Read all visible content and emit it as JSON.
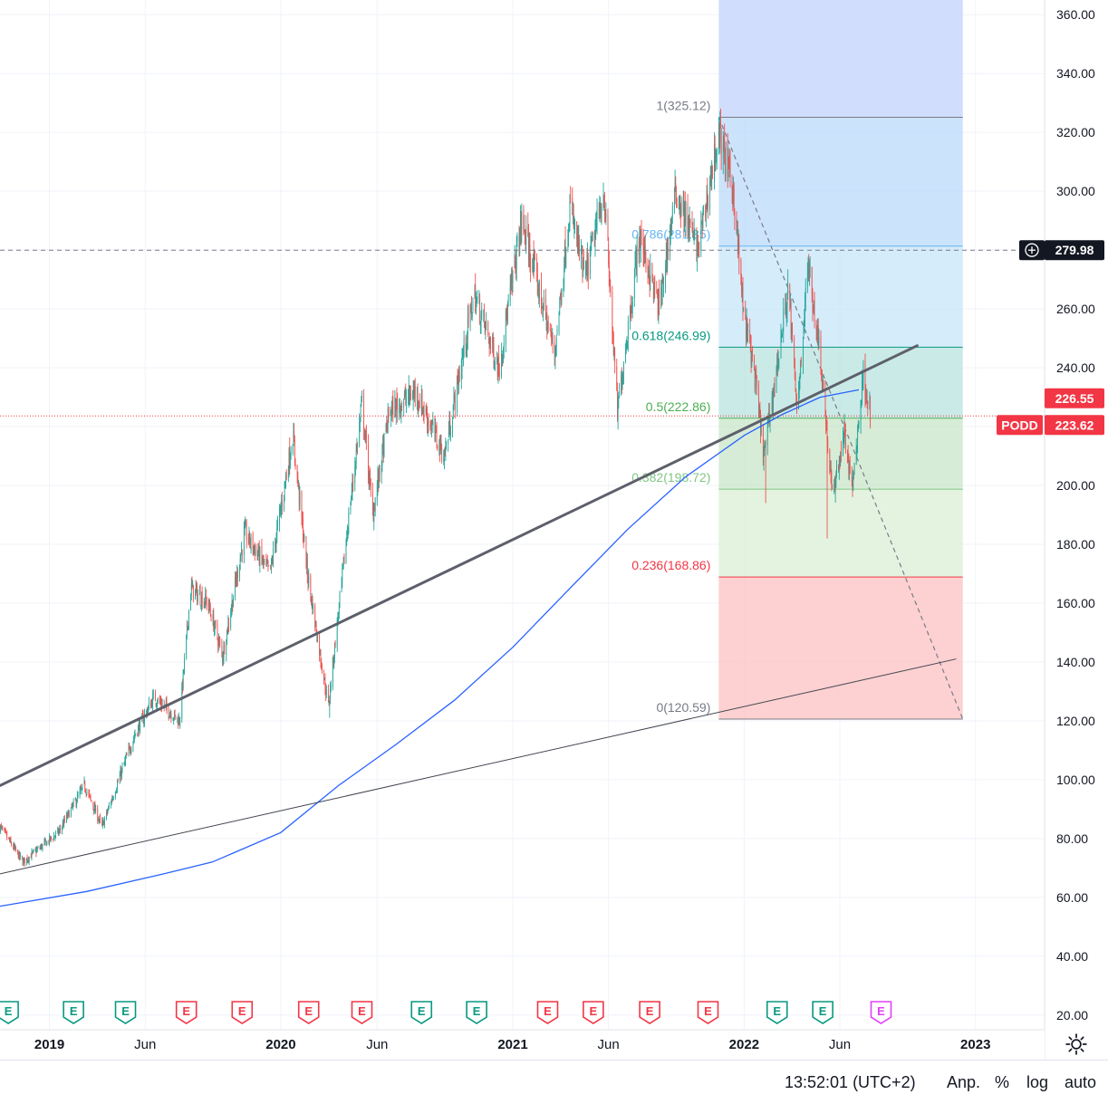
{
  "chart_data": {
    "type": "candlestick",
    "symbol": "PODD",
    "y_axis": {
      "min": 15,
      "max": 365,
      "ticks": [
        "20.00",
        "40.00",
        "60.00",
        "80.00",
        "100.00",
        "120.00",
        "140.00",
        "160.00",
        "180.00",
        "200.00",
        "220.00",
        "240.00",
        "260.00",
        "280.00",
        "300.00",
        "320.00",
        "340.00",
        "360.00"
      ],
      "tick_values": [
        20,
        40,
        60,
        80,
        100,
        120,
        140,
        160,
        180,
        200,
        220,
        240,
        260,
        280,
        300,
        320,
        340,
        360
      ]
    },
    "x_axis": {
      "start": "2018-10-15",
      "end": "2023-04-20",
      "labels": [
        {
          "text": "2019",
          "date": "2019-01-01"
        },
        {
          "text": "Jun",
          "date": "2019-06-01"
        },
        {
          "text": "2020",
          "date": "2020-01-01"
        },
        {
          "text": "Jun",
          "date": "2020-06-01"
        },
        {
          "text": "2021",
          "date": "2021-01-01"
        },
        {
          "text": "Jun",
          "date": "2021-06-01"
        },
        {
          "text": "2022",
          "date": "2022-01-01"
        },
        {
          "text": "Jun",
          "date": "2022-06-01"
        },
        {
          "text": "2023",
          "date": "2023-01-01"
        }
      ]
    },
    "price_path": [
      [
        "2018-10-15",
        84
      ],
      [
        "2018-11-20",
        72
      ],
      [
        "2019-01-15",
        82
      ],
      [
        "2019-02-25",
        98
      ],
      [
        "2019-03-25",
        84
      ],
      [
        "2019-05-15",
        115
      ],
      [
        "2019-06-15",
        128
      ],
      [
        "2019-07-25",
        120
      ],
      [
        "2019-08-12",
        165
      ],
      [
        "2019-09-08",
        160
      ],
      [
        "2019-10-01",
        142
      ],
      [
        "2019-11-05",
        184
      ],
      [
        "2019-12-15",
        170
      ],
      [
        "2020-01-20",
        217
      ],
      [
        "2020-02-12",
        170
      ],
      [
        "2020-03-16",
        125
      ],
      [
        "2020-04-15",
        185
      ],
      [
        "2020-05-08",
        228
      ],
      [
        "2020-05-25",
        190
      ],
      [
        "2020-06-20",
        225
      ],
      [
        "2020-08-01",
        232
      ],
      [
        "2020-09-15",
        210
      ],
      [
        "2020-11-01",
        265
      ],
      [
        "2020-12-10",
        240
      ],
      [
        "2021-01-15",
        290
      ],
      [
        "2021-03-08",
        245
      ],
      [
        "2021-04-01",
        295
      ],
      [
        "2021-04-25",
        270
      ],
      [
        "2021-05-25",
        300
      ],
      [
        "2021-06-15",
        225
      ],
      [
        "2021-07-20",
        285
      ],
      [
        "2021-08-20",
        260
      ],
      [
        "2021-09-15",
        300
      ],
      [
        "2021-10-20",
        280
      ],
      [
        "2021-11-22",
        320
      ],
      [
        "2021-12-15",
        300
      ],
      [
        "2021-12-31",
        258
      ],
      [
        "2022-01-15",
        242
      ],
      [
        "2022-02-01",
        210
      ],
      [
        "2022-02-20",
        238
      ],
      [
        "2022-03-12",
        268
      ],
      [
        "2022-03-25",
        225
      ],
      [
        "2022-04-12",
        275
      ],
      [
        "2022-05-01",
        245
      ],
      [
        "2022-05-20",
        196
      ],
      [
        "2022-06-08",
        218
      ],
      [
        "2022-06-20",
        198
      ],
      [
        "2022-07-08",
        238
      ],
      [
        "2022-07-20",
        223.62
      ]
    ],
    "wicks": [
      {
        "date": "2020-03-18",
        "low": 121
      },
      {
        "date": "2021-06-16",
        "low": 219
      },
      {
        "date": "2021-11-22",
        "high": 325.12
      },
      {
        "date": "2022-02-05",
        "low": 194
      },
      {
        "date": "2022-05-12",
        "low": 182
      }
    ],
    "moving_average": [
      [
        "2018-10-15",
        57
      ],
      [
        "2019-03-01",
        62
      ],
      [
        "2019-07-01",
        68
      ],
      [
        "2019-09-15",
        72
      ],
      [
        "2020-01-01",
        82
      ],
      [
        "2020-04-01",
        98
      ],
      [
        "2020-07-01",
        112
      ],
      [
        "2020-10-01",
        127
      ],
      [
        "2021-01-01",
        145
      ],
      [
        "2021-04-01",
        165
      ],
      [
        "2021-07-01",
        185
      ],
      [
        "2021-10-01",
        203
      ],
      [
        "2022-01-01",
        217
      ],
      [
        "2022-03-01",
        224
      ],
      [
        "2022-05-01",
        230
      ],
      [
        "2022-07-01",
        232.5
      ]
    ],
    "trend_lines": [
      {
        "name": "thick-trendline",
        "from": [
          "2018-10-15",
          98
        ],
        "to": [
          "2022-10-01",
          247.5
        ],
        "color": "#5d606b",
        "width": 3
      },
      {
        "name": "thin-trendline",
        "from": [
          "2018-10-15",
          68
        ],
        "to": [
          "2022-12-01",
          141
        ],
        "color": "#434651",
        "width": 1
      }
    ],
    "horizontal_lines": [
      {
        "name": "crosshair-line",
        "value": 279.98,
        "style": "dashed",
        "color": "#787b86"
      },
      {
        "name": "last-price-line",
        "value": 223.62,
        "style": "dotted",
        "color": "#f23645"
      }
    ],
    "fibonacci": {
      "start_date": "2021-11-22",
      "end_date": "2022-12-12",
      "high": 325.12,
      "low": 120.59,
      "levels": [
        {
          "label": "1(325.12)",
          "value": 325.12,
          "color": "#787b86",
          "zone_color": "#d1d4dc"
        },
        {
          "label": "0.786(281.35)",
          "value": 281.35,
          "color": "#64b5f6",
          "zone_color": "#bbd9fb"
        },
        {
          "label": "0.618(246.99)",
          "value": 246.99,
          "color": "#089981",
          "zone_color": "#c7e5f8"
        },
        {
          "label": "0.5(222.86)",
          "value": 222.86,
          "color": "#4caf50",
          "zone_color": "#b8e3df"
        },
        {
          "label": "0.382(198.72)",
          "value": 198.72,
          "color": "#81c784",
          "zone_color": "#c9e6c9"
        },
        {
          "label": "0.236(168.86)",
          "value": 168.86,
          "color": "#f23645",
          "zone_color": "#d9efd6"
        },
        {
          "label": "0(120.59)",
          "value": 120.59,
          "color": "#787b86",
          "zone_color": "#fcc2c2"
        }
      ],
      "extension_color": "#cfdbfd"
    },
    "price_labels": [
      {
        "name": "crosshair-price-label",
        "text": "279.98",
        "value": 279.98,
        "bg": "#131722",
        "fg": "#ffffff"
      },
      {
        "name": "ma-price-label",
        "text": "226.55",
        "value": 226.55,
        "bg": "#f23645",
        "fg": "#ffffff"
      },
      {
        "name": "last-price-label",
        "text": "223.62",
        "value": 223.62,
        "bg": "#f23645",
        "fg": "#ffffff"
      }
    ],
    "events": [
      {
        "date": "2018-10-28",
        "type": "E",
        "color": "#089981"
      },
      {
        "date": "2019-02-08",
        "type": "E",
        "color": "#089981"
      },
      {
        "date": "2019-05-01",
        "type": "E",
        "color": "#089981"
      },
      {
        "date": "2019-08-05",
        "type": "E",
        "color": "#f23645"
      },
      {
        "date": "2019-11-01",
        "type": "E",
        "color": "#f23645"
      },
      {
        "date": "2020-02-14",
        "type": "E",
        "color": "#f23645"
      },
      {
        "date": "2020-05-08",
        "type": "E",
        "color": "#f23645"
      },
      {
        "date": "2020-08-10",
        "type": "E",
        "color": "#089981"
      },
      {
        "date": "2020-11-05",
        "type": "E",
        "color": "#089981"
      },
      {
        "date": "2021-02-25",
        "type": "E",
        "color": "#f23645"
      },
      {
        "date": "2021-05-08",
        "type": "E",
        "color": "#f23645"
      },
      {
        "date": "2021-08-05",
        "type": "E",
        "color": "#f23645"
      },
      {
        "date": "2021-11-05",
        "type": "E",
        "color": "#f23645"
      },
      {
        "date": "2022-02-22",
        "type": "E",
        "color": "#089981"
      },
      {
        "date": "2022-05-05",
        "type": "E",
        "color": "#089981"
      },
      {
        "date": "2022-08-05",
        "type": "E",
        "color": "#e040fb"
      }
    ],
    "colors": {
      "up": "#26a69a",
      "down": "#ef5350",
      "ma": "#2962ff",
      "grid": "#f0f3fa"
    }
  },
  "bottom_bar": {
    "time": "13:52:01 (UTC+2)",
    "adj": "Anp.",
    "percent": "%",
    "log": "log",
    "auto": "auto"
  }
}
